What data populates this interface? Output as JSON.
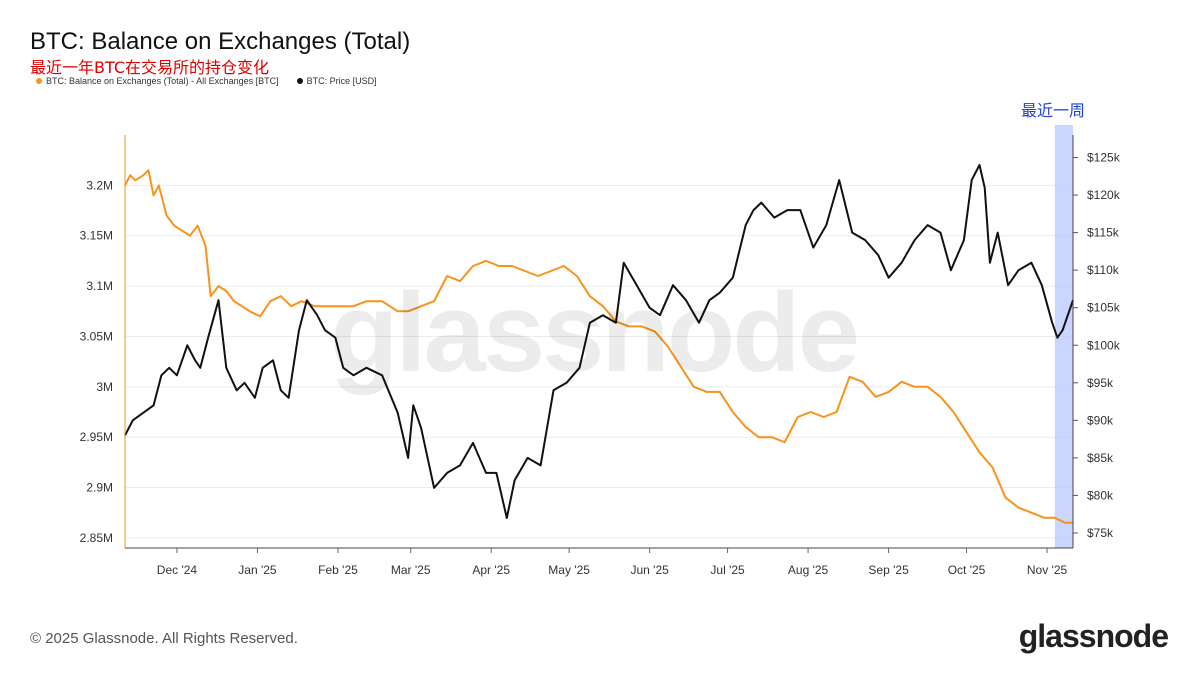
{
  "chart_data": {
    "type": "line",
    "title": "BTC: Balance on Exchanges (Total)",
    "subtitle": "最近一年BTC在交易所的持仓变化",
    "highlight_label": "最近一周",
    "x_ticks": [
      "Dec '24",
      "Jan '25",
      "Feb '25",
      "Mar '25",
      "Apr '25",
      "May '25",
      "Jun '25",
      "Jul '25",
      "Aug '25",
      "Sep '25",
      "Oct '25",
      "Nov '25"
    ],
    "y_left_ticks": [
      "2.85M",
      "2.9M",
      "2.95M",
      "3M",
      "3.05M",
      "3.1M",
      "3.15M",
      "3.2M"
    ],
    "y_right_ticks": [
      "$75k",
      "$80k",
      "$85k",
      "$90k",
      "$95k",
      "$100k",
      "$105k",
      "$110k",
      "$115k",
      "$120k",
      "$125k"
    ],
    "y_left_range": [
      2.84,
      3.25
    ],
    "y_right_range": [
      73,
      128
    ],
    "x_range": [
      "2024-11-11",
      "2025-11-11"
    ],
    "grid": "horizontal",
    "legend_position": "top-left",
    "series": [
      {
        "name": "BTC: Balance on Exchanges (Total) - All Exchanges [BTC]",
        "axis": "left",
        "color": "#f7931a",
        "x": [
          "2024-11-11",
          "2024-11-13",
          "2024-11-15",
          "2024-11-18",
          "2024-11-20",
          "2024-11-22",
          "2024-11-24",
          "2024-11-27",
          "2024-11-30",
          "2024-12-03",
          "2024-12-06",
          "2024-12-09",
          "2024-12-12",
          "2024-12-14",
          "2024-12-17",
          "2024-12-20",
          "2024-12-23",
          "2024-12-26",
          "2024-12-29",
          "2025-01-02",
          "2025-01-06",
          "2025-01-10",
          "2025-01-14",
          "2025-01-18",
          "2025-01-23",
          "2025-01-28",
          "2025-02-02",
          "2025-02-07",
          "2025-02-12",
          "2025-02-18",
          "2025-02-24",
          "2025-02-28",
          "2025-03-05",
          "2025-03-10",
          "2025-03-15",
          "2025-03-20",
          "2025-03-25",
          "2025-03-30",
          "2025-04-04",
          "2025-04-09",
          "2025-04-14",
          "2025-04-19",
          "2025-04-24",
          "2025-04-29",
          "2025-05-04",
          "2025-05-09",
          "2025-05-14",
          "2025-05-19",
          "2025-05-24",
          "2025-05-29",
          "2025-06-03",
          "2025-06-08",
          "2025-06-13",
          "2025-06-18",
          "2025-06-23",
          "2025-06-28",
          "2025-07-03",
          "2025-07-08",
          "2025-07-13",
          "2025-07-18",
          "2025-07-23",
          "2025-07-28",
          "2025-08-02",
          "2025-08-07",
          "2025-08-12",
          "2025-08-17",
          "2025-08-22",
          "2025-08-27",
          "2025-09-01",
          "2025-09-06",
          "2025-09-11",
          "2025-09-16",
          "2025-09-21",
          "2025-09-26",
          "2025-10-01",
          "2025-10-06",
          "2025-10-11",
          "2025-10-16",
          "2025-10-21",
          "2025-10-26",
          "2025-10-31",
          "2025-11-04",
          "2025-11-08",
          "2025-11-11"
        ],
        "values": [
          3.2,
          3.21,
          3.205,
          3.21,
          3.215,
          3.19,
          3.2,
          3.17,
          3.16,
          3.155,
          3.15,
          3.16,
          3.14,
          3.09,
          3.1,
          3.095,
          3.085,
          3.08,
          3.075,
          3.07,
          3.085,
          3.09,
          3.08,
          3.085,
          3.08,
          3.08,
          3.08,
          3.08,
          3.085,
          3.085,
          3.075,
          3.075,
          3.08,
          3.085,
          3.11,
          3.105,
          3.12,
          3.125,
          3.12,
          3.12,
          3.115,
          3.11,
          3.115,
          3.12,
          3.11,
          3.09,
          3.08,
          3.065,
          3.06,
          3.06,
          3.055,
          3.04,
          3.02,
          3.0,
          2.995,
          2.995,
          2.975,
          2.96,
          2.95,
          2.95,
          2.945,
          2.97,
          2.975,
          2.97,
          2.975,
          3.01,
          3.005,
          2.99,
          2.995,
          3.005,
          3.0,
          3.0,
          2.99,
          2.975,
          2.955,
          2.935,
          2.92,
          2.89,
          2.88,
          2.875,
          2.87,
          2.87,
          2.865,
          2.865
        ]
      },
      {
        "name": "BTC: Price [USD]",
        "axis": "right",
        "color": "#111111",
        "x": [
          "2024-11-11",
          "2024-11-14",
          "2024-11-18",
          "2024-11-22",
          "2024-11-25",
          "2024-11-28",
          "2024-12-01",
          "2024-12-05",
          "2024-12-08",
          "2024-12-10",
          "2024-12-13",
          "2024-12-17",
          "2024-12-20",
          "2024-12-24",
          "2024-12-27",
          "2024-12-31",
          "2025-01-03",
          "2025-01-07",
          "2025-01-10",
          "2025-01-13",
          "2025-01-17",
          "2025-01-20",
          "2025-01-24",
          "2025-01-27",
          "2025-01-31",
          "2025-02-03",
          "2025-02-07",
          "2025-02-12",
          "2025-02-18",
          "2025-02-24",
          "2025-02-28",
          "2025-03-02",
          "2025-03-05",
          "2025-03-10",
          "2025-03-15",
          "2025-03-20",
          "2025-03-25",
          "2025-03-30",
          "2025-04-03",
          "2025-04-07",
          "2025-04-10",
          "2025-04-15",
          "2025-04-20",
          "2025-04-25",
          "2025-04-30",
          "2025-05-05",
          "2025-05-09",
          "2025-05-14",
          "2025-05-19",
          "2025-05-22",
          "2025-05-27",
          "2025-06-01",
          "2025-06-05",
          "2025-06-10",
          "2025-06-15",
          "2025-06-20",
          "2025-06-24",
          "2025-06-28",
          "2025-07-03",
          "2025-07-08",
          "2025-07-11",
          "2025-07-14",
          "2025-07-19",
          "2025-07-24",
          "2025-07-29",
          "2025-08-03",
          "2025-08-08",
          "2025-08-13",
          "2025-08-18",
          "2025-08-23",
          "2025-08-28",
          "2025-09-01",
          "2025-09-06",
          "2025-09-11",
          "2025-09-16",
          "2025-09-21",
          "2025-09-25",
          "2025-09-30",
          "2025-10-03",
          "2025-10-06",
          "2025-10-08",
          "2025-10-10",
          "2025-10-13",
          "2025-10-17",
          "2025-10-21",
          "2025-10-26",
          "2025-10-30",
          "2025-11-03",
          "2025-11-05",
          "2025-11-07",
          "2025-11-09",
          "2025-11-11"
        ],
        "values": [
          88,
          90,
          91,
          92,
          96,
          97,
          96,
          100,
          98,
          97,
          101,
          106,
          97,
          94,
          95,
          93,
          97,
          98,
          94,
          93,
          102,
          106,
          104,
          102,
          101,
          97,
          96,
          97,
          96,
          91,
          85,
          92,
          89,
          81,
          83,
          84,
          87,
          83,
          83,
          77,
          82,
          85,
          84,
          94,
          95,
          97,
          103,
          104,
          103,
          111,
          108,
          105,
          104,
          108,
          106,
          103,
          106,
          107,
          109,
          116,
          118,
          119,
          117,
          118,
          118,
          113,
          116,
          122,
          115,
          114,
          112,
          109,
          111,
          114,
          116,
          115,
          110,
          114,
          122,
          124,
          121,
          111,
          115,
          108,
          110,
          111,
          108,
          103,
          101,
          102,
          104,
          106
        ]
      }
    ],
    "highlight_range": [
      "2025-11-04",
      "2025-11-11"
    ]
  },
  "footer": {
    "copyright": "© 2025 Glassnode. All Rights Reserved.",
    "brand": "glassnode",
    "watermark": "glassnode"
  }
}
